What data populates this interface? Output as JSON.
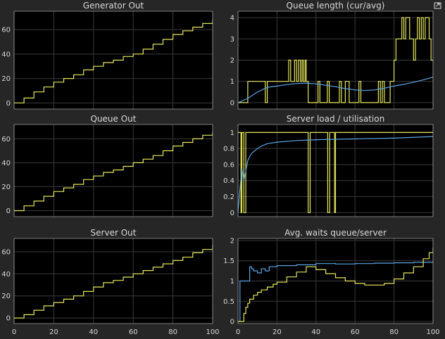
{
  "figure": {
    "background": "#262626",
    "axes_color": "#000000",
    "text_color": "#d9d9d9",
    "grid_color": "#3a3a3a"
  },
  "chart_data": [
    {
      "id": "gen",
      "type": "line",
      "title": "Generator Out",
      "xlim": [
        0,
        100
      ],
      "ylim": [
        -5,
        75
      ],
      "yticks": [
        0,
        20,
        40,
        60
      ],
      "ytick_labels": [
        "0",
        "20",
        "40",
        "60"
      ],
      "xticks": [
        0,
        20,
        40,
        60,
        80,
        100
      ],
      "xtick_labels": [],
      "series": [
        {
          "color": "#e6e65c",
          "style": "step",
          "x": [
            0,
            5,
            10,
            15,
            20,
            25,
            30,
            35,
            40,
            45,
            50,
            55,
            60,
            65,
            70,
            75,
            80,
            85,
            90,
            95,
            100
          ],
          "y": [
            0,
            4,
            9,
            13,
            17,
            20,
            23,
            27,
            30,
            33,
            35,
            38,
            40,
            44,
            48,
            52,
            56,
            59,
            62,
            65,
            68
          ]
        }
      ]
    },
    {
      "id": "queue",
      "type": "line",
      "title": "Queue length (cur/avg)",
      "xlim": [
        0,
        100
      ],
      "ylim": [
        -0.3,
        4.3
      ],
      "yticks": [
        0,
        1,
        2,
        3,
        4
      ],
      "ytick_labels": [
        "0",
        "1",
        "2",
        "3",
        "4"
      ],
      "xticks": [
        0,
        20,
        40,
        60,
        80,
        100
      ],
      "xtick_labels": [],
      "series": [
        {
          "color": "#e6e65c",
          "style": "step",
          "x": [
            0,
            5,
            14,
            15,
            26,
            27,
            29,
            30,
            31,
            32,
            32.8,
            33.5,
            34.4,
            35,
            36,
            41,
            42,
            45.8,
            46.8,
            52,
            53,
            55,
            57,
            62,
            63,
            72,
            73,
            74,
            75,
            78,
            80,
            81,
            84,
            85,
            86,
            88,
            90,
            91,
            92,
            93,
            94,
            95,
            96,
            98,
            99,
            100
          ],
          "y": [
            0,
            1,
            0,
            1,
            2,
            1,
            2,
            1,
            2,
            1,
            2,
            1,
            2,
            1,
            0,
            1,
            0,
            1,
            0,
            1,
            0,
            1,
            0,
            1,
            0,
            1,
            0,
            1,
            0,
            1,
            2,
            3,
            4,
            3,
            4,
            3,
            2,
            3,
            4,
            3,
            4,
            3,
            4,
            3,
            2,
            2
          ]
        },
        {
          "color": "#5aa5e6",
          "style": "line",
          "x": [
            0,
            5,
            10,
            15,
            20,
            25,
            30,
            35,
            40,
            45,
            50,
            55,
            60,
            65,
            70,
            75,
            80,
            85,
            90,
            95,
            100
          ],
          "y": [
            0,
            0.2,
            0.5,
            0.72,
            0.78,
            0.85,
            0.9,
            0.92,
            0.88,
            0.82,
            0.75,
            0.66,
            0.6,
            0.57,
            0.6,
            0.68,
            0.78,
            0.86,
            0.96,
            1.07,
            1.2
          ]
        }
      ]
    },
    {
      "id": "qout",
      "type": "line",
      "title": "Queue Out",
      "xlim": [
        0,
        100
      ],
      "ylim": [
        -5,
        72
      ],
      "yticks": [
        0,
        20,
        40,
        60
      ],
      "ytick_labels": [
        "0",
        "20",
        "40",
        "60"
      ],
      "xticks": [
        0,
        20,
        40,
        60,
        80,
        100
      ],
      "xtick_labels": [],
      "series": [
        {
          "color": "#e6e65c",
          "style": "step",
          "x": [
            0,
            5,
            10,
            15,
            20,
            25,
            30,
            35,
            40,
            45,
            50,
            55,
            60,
            65,
            70,
            75,
            80,
            85,
            90,
            95,
            100
          ],
          "y": [
            0,
            4,
            8,
            12,
            16,
            19,
            22,
            26,
            29,
            32,
            34,
            37,
            40,
            43,
            46,
            50,
            54,
            57,
            60,
            63,
            66
          ]
        }
      ]
    },
    {
      "id": "load",
      "type": "line",
      "title": "Server load / utilisation",
      "xlim": [
        0,
        100
      ],
      "ylim": [
        -0.05,
        1.1
      ],
      "yticks": [
        0,
        0.2,
        0.4,
        0.6,
        0.8,
        1
      ],
      "ytick_labels": [
        "0",
        "0.2",
        "0.4",
        "0.6",
        "0.8",
        "1"
      ],
      "xticks": [
        0,
        20,
        40,
        60,
        80,
        100
      ],
      "xtick_labels": [],
      "series": [
        {
          "color": "#e6e65c",
          "style": "step",
          "x": [
            0,
            1.5,
            2,
            3,
            4,
            36,
            37,
            46,
            47,
            49.5,
            50,
            51,
            100
          ],
          "y": [
            1,
            0,
            1,
            0,
            1,
            0,
            1,
            0,
            1,
            0,
            1,
            1,
            1
          ]
        },
        {
          "color": "#5aa5e6",
          "style": "line",
          "x": [
            0,
            1,
            2,
            3,
            4,
            5,
            6,
            7,
            8,
            10,
            12,
            15,
            20,
            30,
            40,
            60,
            80,
            100
          ],
          "y": [
            0,
            0.3,
            0.55,
            0.4,
            0.52,
            0.65,
            0.7,
            0.74,
            0.76,
            0.8,
            0.83,
            0.86,
            0.88,
            0.9,
            0.91,
            0.92,
            0.93,
            0.95
          ]
        }
      ]
    },
    {
      "id": "sout",
      "type": "line",
      "title": "Server Out",
      "xlim": [
        0,
        100
      ],
      "ylim": [
        -5,
        72
      ],
      "yticks": [
        0,
        20,
        40,
        60
      ],
      "ytick_labels": [
        "0",
        "20",
        "40",
        "60"
      ],
      "xticks": [
        0,
        20,
        40,
        60,
        80,
        100
      ],
      "xtick_labels": [
        "0",
        "20",
        "40",
        "60",
        "80",
        "100"
      ],
      "series": [
        {
          "color": "#e6e65c",
          "style": "step",
          "x": [
            0,
            5,
            10,
            15,
            20,
            25,
            30,
            35,
            40,
            45,
            50,
            55,
            60,
            65,
            70,
            75,
            80,
            85,
            90,
            95,
            100
          ],
          "y": [
            0,
            3,
            7,
            11,
            14,
            17,
            20,
            24,
            28,
            32,
            34,
            37,
            40,
            43,
            46,
            49,
            52,
            55,
            59,
            62,
            66
          ]
        }
      ]
    },
    {
      "id": "waits",
      "type": "line",
      "title": "Avg. waits queue/server",
      "xlim": [
        0,
        100
      ],
      "ylim": [
        -0.05,
        2.05
      ],
      "yticks": [
        0,
        0.5,
        1,
        1.5,
        2
      ],
      "ytick_labels": [
        "0",
        "0.5",
        "1",
        "1.5",
        "2"
      ],
      "xticks": [
        0,
        20,
        40,
        60,
        80,
        100
      ],
      "xtick_labels": [
        "0",
        "20",
        "40",
        "60",
        "80",
        "100"
      ],
      "series": [
        {
          "color": "#5aa5e6",
          "style": "step",
          "x": [
            0,
            1,
            5,
            6,
            7,
            8,
            10,
            12,
            14,
            16,
            20,
            30,
            40,
            50,
            60,
            70,
            80,
            90,
            100
          ],
          "y": [
            0,
            1,
            1,
            1.35,
            1.3,
            1.25,
            1.2,
            1.3,
            1.25,
            1.35,
            1.38,
            1.4,
            1.43,
            1.42,
            1.43,
            1.44,
            1.45,
            1.46,
            1.47
          ]
        },
        {
          "color": "#e6e65c",
          "style": "step",
          "x": [
            0,
            2,
            3,
            4,
            5,
            6,
            8,
            10,
            12,
            15,
            18,
            20,
            25,
            30,
            35,
            40,
            45,
            50,
            55,
            60,
            65,
            70,
            75,
            80,
            85,
            90,
            95,
            98,
            100
          ],
          "y": [
            0,
            0,
            0.2,
            0.35,
            0.45,
            0.55,
            0.65,
            0.72,
            0.78,
            0.85,
            0.92,
            0.97,
            1.1,
            1.22,
            1.35,
            1.28,
            1.18,
            1.08,
            1,
            0.94,
            0.9,
            0.9,
            0.94,
            1.05,
            1.2,
            1.35,
            1.55,
            1.7,
            1.82
          ]
        }
      ]
    }
  ]
}
